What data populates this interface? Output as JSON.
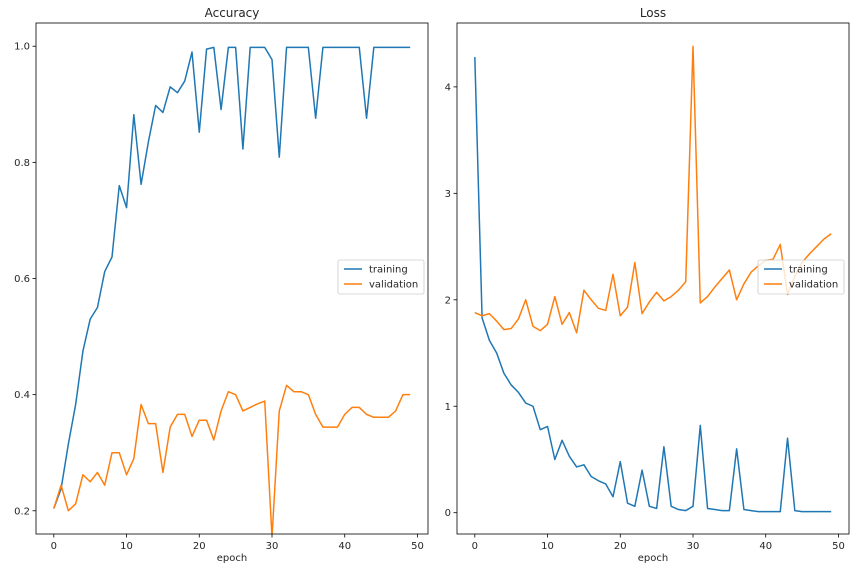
{
  "chart_data": [
    {
      "type": "line",
      "title": "Accuracy",
      "xlabel": "epoch",
      "ylabel": "",
      "xlim": [
        -2.45,
        51.45
      ],
      "ylim": [
        0.16,
        1.04
      ],
      "xticks": [
        0,
        10,
        20,
        30,
        40,
        50
      ],
      "xtick_labels": [
        "0",
        "10",
        "20",
        "30",
        "40",
        "50"
      ],
      "yticks": [
        0.2,
        0.4,
        0.6,
        0.8,
        1.0
      ],
      "ytick_labels": [
        "0.2",
        "0.4",
        "0.6",
        "0.8",
        "1.0"
      ],
      "grid": false,
      "legend": "center-right",
      "x": [
        0,
        1,
        2,
        3,
        4,
        5,
        6,
        7,
        8,
        9,
        10,
        11,
        12,
        13,
        14,
        15,
        16,
        17,
        18,
        19,
        20,
        21,
        22,
        23,
        24,
        25,
        26,
        27,
        28,
        29,
        30,
        31,
        32,
        33,
        34,
        35,
        36,
        37,
        38,
        39,
        40,
        41,
        42,
        43,
        44,
        45,
        46,
        47,
        48,
        49
      ],
      "series": [
        {
          "name": "training",
          "color": "#1f77b4",
          "values": [
            0.204,
            0.238,
            0.315,
            0.383,
            0.475,
            0.53,
            0.55,
            0.612,
            0.637,
            0.76,
            0.722,
            0.882,
            0.762,
            0.835,
            0.898,
            0.886,
            0.93,
            0.92,
            0.94,
            0.99,
            0.852,
            0.995,
            0.998,
            0.891,
            0.998,
            0.998,
            0.823,
            0.998,
            0.998,
            0.998,
            0.977,
            0.809,
            0.998,
            0.998,
            0.998,
            0.998,
            0.876,
            0.998,
            0.998,
            0.998,
            0.998,
            0.998,
            0.998,
            0.876,
            0.998,
            0.998,
            0.998,
            0.998,
            0.998,
            0.998
          ]
        },
        {
          "name": "validation",
          "color": "#ff7f0e",
          "values": [
            0.204,
            0.244,
            0.2,
            0.212,
            0.262,
            0.25,
            0.266,
            0.244,
            0.3,
            0.3,
            0.262,
            0.29,
            0.383,
            0.35,
            0.35,
            0.266,
            0.344,
            0.366,
            0.366,
            0.328,
            0.356,
            0.356,
            0.322,
            0.372,
            0.405,
            0.4,
            0.372,
            0.378,
            0.384,
            0.389,
            0.155,
            0.372,
            0.416,
            0.405,
            0.405,
            0.4,
            0.366,
            0.344,
            0.344,
            0.344,
            0.366,
            0.378,
            0.378,
            0.366,
            0.361,
            0.361,
            0.361,
            0.372,
            0.4,
            0.4
          ]
        }
      ]
    },
    {
      "type": "line",
      "title": "Loss",
      "xlabel": "epoch",
      "ylabel": "",
      "xlim": [
        -2.45,
        51.45
      ],
      "ylim": [
        -0.2,
        4.6
      ],
      "xticks": [
        0,
        10,
        20,
        30,
        40,
        50
      ],
      "xtick_labels": [
        "0",
        "10",
        "20",
        "30",
        "40",
        "50"
      ],
      "yticks": [
        0,
        1,
        2,
        3,
        4
      ],
      "ytick_labels": [
        "0",
        "1",
        "2",
        "3",
        "4"
      ],
      "grid": false,
      "legend": "center-right",
      "x": [
        0,
        1,
        2,
        3,
        4,
        5,
        6,
        7,
        8,
        9,
        10,
        11,
        12,
        13,
        14,
        15,
        16,
        17,
        18,
        19,
        20,
        21,
        22,
        23,
        24,
        25,
        26,
        27,
        28,
        29,
        30,
        31,
        32,
        33,
        34,
        35,
        36,
        37,
        38,
        39,
        40,
        41,
        42,
        43,
        44,
        45,
        46,
        47,
        48,
        49
      ],
      "series": [
        {
          "name": "training",
          "color": "#1f77b4",
          "values": [
            4.28,
            1.83,
            1.62,
            1.5,
            1.31,
            1.2,
            1.13,
            1.03,
            1.0,
            0.78,
            0.81,
            0.5,
            0.68,
            0.53,
            0.43,
            0.45,
            0.34,
            0.3,
            0.27,
            0.15,
            0.48,
            0.09,
            0.06,
            0.4,
            0.06,
            0.04,
            0.62,
            0.06,
            0.03,
            0.02,
            0.06,
            0.82,
            0.04,
            0.03,
            0.02,
            0.02,
            0.6,
            0.03,
            0.02,
            0.01,
            0.01,
            0.01,
            0.01,
            0.7,
            0.02,
            0.01,
            0.01,
            0.01,
            0.01,
            0.01
          ]
        },
        {
          "name": "validation",
          "color": "#ff7f0e",
          "values": [
            1.88,
            1.85,
            1.87,
            1.8,
            1.72,
            1.73,
            1.82,
            2.0,
            1.75,
            1.71,
            1.77,
            2.03,
            1.77,
            1.88,
            1.69,
            2.09,
            2.0,
            1.92,
            1.9,
            2.24,
            1.85,
            1.93,
            2.35,
            1.87,
            1.98,
            2.07,
            1.99,
            2.03,
            2.09,
            2.17,
            4.38,
            1.97,
            2.03,
            2.12,
            2.2,
            2.28,
            2.0,
            2.15,
            2.26,
            2.32,
            2.37,
            2.38,
            2.52,
            2.05,
            2.22,
            2.35,
            2.43,
            2.5,
            2.57,
            2.62
          ]
        }
      ]
    }
  ]
}
